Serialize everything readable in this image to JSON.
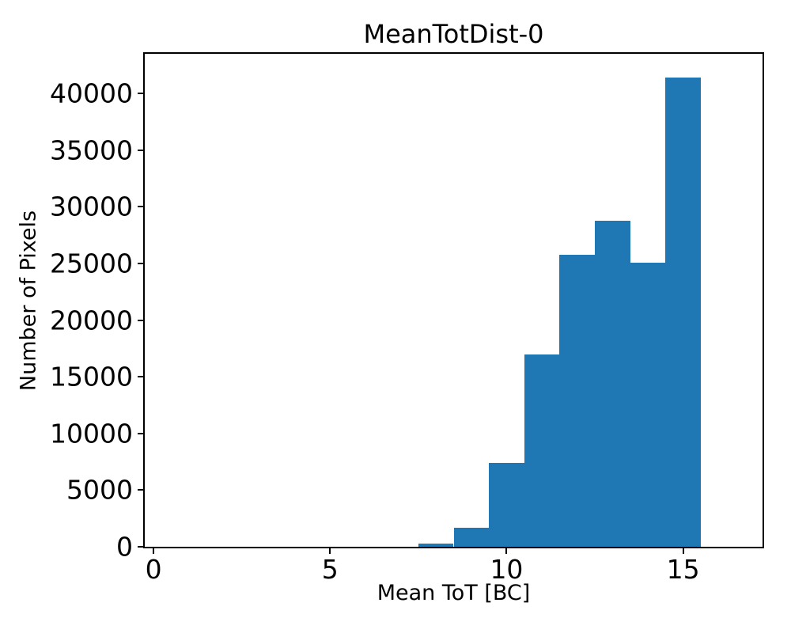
{
  "chart_data": {
    "type": "bar",
    "subtype": "histogram",
    "title": "MeanTotDist-0",
    "xlabel": "Mean ToT [BC]",
    "ylabel": "Number of Pixels",
    "bin_edges": [
      7.5,
      8.5,
      9.5,
      10.5,
      11.5,
      12.5,
      13.5,
      14.5,
      15.5
    ],
    "bin_centers": [
      8,
      9,
      10,
      11,
      12,
      13,
      14,
      15
    ],
    "values": [
      300,
      1700,
      7400,
      17000,
      25800,
      28800,
      25100,
      41400
    ],
    "bar_color": "#1f77b4",
    "xlim": [
      -0.25,
      17.25
    ],
    "ylim": [
      0,
      43500
    ],
    "x_ticks": [
      0,
      5,
      10,
      15
    ],
    "x_tick_labels": [
      "0",
      "5",
      "10",
      "15"
    ],
    "y_ticks": [
      0,
      5000,
      10000,
      15000,
      20000,
      25000,
      30000,
      35000,
      40000
    ],
    "y_tick_labels": [
      "0",
      "5000",
      "10000",
      "15000",
      "20000",
      "25000",
      "30000",
      "35000",
      "40000"
    ],
    "grid": false,
    "legend_position": "none",
    "axis_color": "#000000",
    "text_color": "#000000"
  }
}
